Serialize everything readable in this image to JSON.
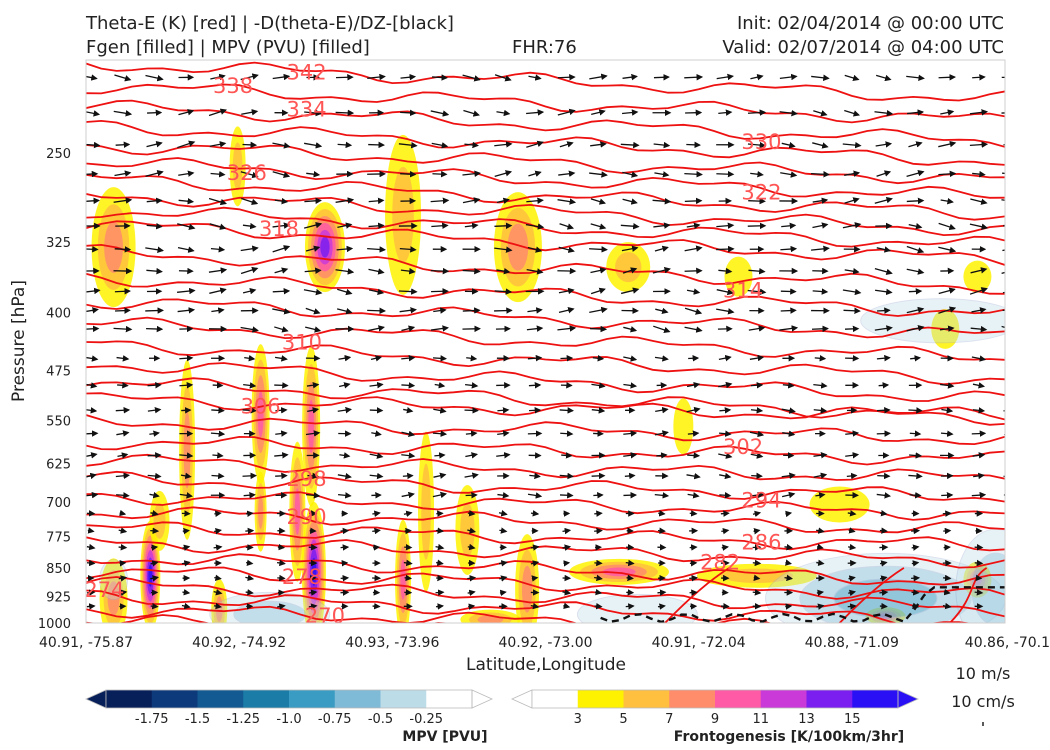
{
  "header": {
    "line1_left": "Theta-E (K) [red] | -D(theta-E)/DZ-[black]",
    "line2_left": "Fgen [filled] | MPV (PVU) [filled]",
    "fhr": "FHR:76",
    "init": "Init: 02/04/2014 @ 00:00 UTC",
    "valid": "Valid: 02/07/2014 @ 04:00 UTC"
  },
  "chart_data": {
    "type": "cross-section",
    "xlabel": "Latitude,Longitude",
    "ylabel": "Pressure [hPa]",
    "x_ticks": [
      "40.91, -75.87",
      "40.92, -74.92",
      "40.93, -73.96",
      "40.92, -73.00",
      "40.91, -72.04",
      "40.88, -71.09",
      "40.86, -70.1"
    ],
    "y_ticks": [
      250,
      325,
      400,
      475,
      550,
      625,
      700,
      775,
      850,
      925,
      1000
    ],
    "ylim": [
      1000,
      190
    ],
    "y_scale": "log",
    "theta_e_labels": [
      {
        "v": "338",
        "x": 0.16,
        "p": 205
      },
      {
        "v": "342",
        "x": 0.24,
        "p": 197
      },
      {
        "v": "334",
        "x": 0.24,
        "p": 220
      },
      {
        "v": "326",
        "x": 0.175,
        "p": 265
      },
      {
        "v": "318",
        "x": 0.21,
        "p": 313
      },
      {
        "v": "310",
        "x": 0.235,
        "p": 437
      },
      {
        "v": "306",
        "x": 0.19,
        "p": 528
      },
      {
        "v": "298",
        "x": 0.24,
        "p": 654
      },
      {
        "v": "290",
        "x": 0.24,
        "p": 732
      },
      {
        "v": "278",
        "x": 0.235,
        "p": 873
      },
      {
        "v": "274",
        "x": 0.02,
        "p": 907
      },
      {
        "v": "270",
        "x": 0.26,
        "p": 980
      },
      {
        "v": "330",
        "x": 0.735,
        "p": 242
      },
      {
        "v": "322",
        "x": 0.735,
        "p": 281
      },
      {
        "v": "314",
        "x": 0.715,
        "p": 375
      },
      {
        "v": "302",
        "x": 0.715,
        "p": 595
      },
      {
        "v": "294",
        "x": 0.735,
        "p": 697
      },
      {
        "v": "286",
        "x": 0.735,
        "p": 789
      },
      {
        "v": "282",
        "x": 0.69,
        "p": 837
      }
    ],
    "mpv_colorbar": {
      "label": "MPV [PVU]",
      "ticks": [
        "-1.75",
        "-1.5",
        "-1.25",
        "-1.0",
        "-0.75",
        "-0.5",
        "-0.25"
      ],
      "colors": [
        "#08205a",
        "#0c3a7a",
        "#135a92",
        "#1b7ca8",
        "#3a9cc2",
        "#7fbad6",
        "#bcdce8",
        "#ffffff"
      ]
    },
    "fgen_colorbar": {
      "label": "Frontogenesis [K/100km/3hr]",
      "ticks": [
        "3",
        "5",
        "7",
        "9",
        "11",
        "13",
        "15"
      ],
      "colors": [
        "#ffffff",
        "#fff200",
        "#ffbf3f",
        "#ff8c6b",
        "#ff5aa6",
        "#c93ad8",
        "#7a1ff0",
        "#2a10f5"
      ]
    },
    "reference_vectors": [
      "10 m/s",
      "10 cm/s"
    ]
  }
}
